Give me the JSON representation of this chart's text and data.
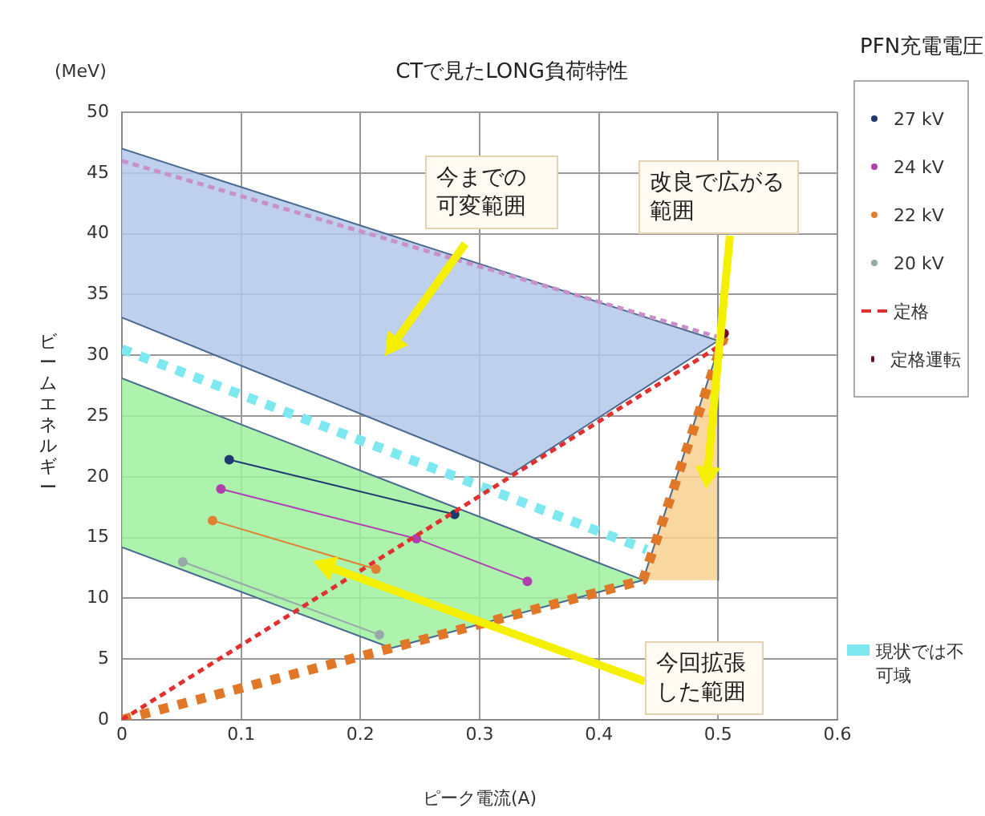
{
  "chart_data": {
    "type": "line",
    "title": "CTで見たLONG負荷特性",
    "xlabel": "ピーク電流(A)",
    "ylabel": "ビームエネルギー",
    "legend_title": "PFN充電電圧",
    "legend": "right",
    "xlim": [
      0,
      0.6
    ],
    "xticks": [
      0,
      0.1,
      0.2,
      0.3,
      0.4,
      0.5,
      0.6
    ],
    "ylim": [
      0,
      50
    ],
    "yticks": [
      0,
      5,
      10,
      15,
      20,
      25,
      30,
      35,
      40,
      45,
      50
    ],
    "grid": true,
    "series": [
      {
        "type": "area",
        "color": "#b4c8e8",
        "x": [
          0,
          0.5,
          0.326,
          0
        ],
        "values": [
          47,
          31.2,
          20.2,
          33.1
        ]
      },
      {
        "type": "area",
        "color": "#9ef09e",
        "x": [
          0,
          0.437,
          0.226,
          0
        ],
        "values": [
          28.1,
          11.5,
          5.9,
          14.2
        ]
      },
      {
        "type": "area",
        "color": "#f8d090",
        "x": [
          0.437,
          0.5,
          0.5
        ],
        "values": [
          11.5,
          30.5,
          11.5
        ]
      },
      {
        "color": "#c890c8",
        "line_style": "dashed",
        "marker": "none",
        "x": [
          0,
          0.5
        ],
        "values": [
          46,
          31.5
        ]
      },
      {
        "name": "現状では不可域",
        "color": "#7ee8f0",
        "line_style": "dotted",
        "marker": "none",
        "x": [
          0,
          0.44
        ],
        "values": [
          30.5,
          14
        ]
      },
      {
        "color": "#e07828",
        "line_style": "dotted",
        "marker": "none",
        "x": [
          0,
          0.226,
          0.437,
          0.505
        ],
        "values": [
          0,
          5.9,
          11.5,
          31.5
        ]
      },
      {
        "name": "27 kV",
        "color": "#1e3a6e",
        "marker": "circle",
        "x": [
          0.09,
          0.279
        ],
        "values": [
          21.4,
          16.9
        ]
      },
      {
        "name": "24 kV",
        "color": "#b040b0",
        "marker": "circle",
        "x": [
          0.083,
          0.247,
          0.34
        ],
        "values": [
          19,
          14.9,
          11.4
        ]
      },
      {
        "name": "22 kV",
        "color": "#e08030",
        "marker": "circle",
        "x": [
          0.076,
          0.213
        ],
        "values": [
          16.4,
          12.4
        ]
      },
      {
        "name": "20 kV",
        "color": "#98a8a8",
        "marker": "circle",
        "x": [
          0.051,
          0.216
        ],
        "values": [
          13,
          7
        ]
      },
      {
        "name": "定格",
        "color": "#e03030",
        "line_style": "dashed",
        "marker": "none",
        "x": [
          0,
          0.505
        ],
        "values": [
          0,
          31
        ]
      },
      {
        "name": "定格運転",
        "type": "scatter",
        "color": "#701020",
        "marker": "circle",
        "x": [
          0.505
        ],
        "values": [
          31.8
        ]
      }
    ],
    "annotations": [
      "(MeV)",
      "今までの可変範囲",
      "改良で広がる範囲",
      "今回拡張した範囲"
    ]
  }
}
